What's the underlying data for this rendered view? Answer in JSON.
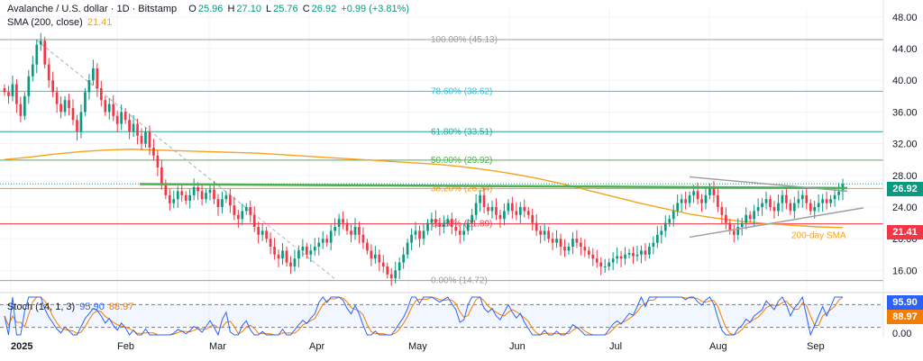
{
  "header": {
    "symbol": "Avalanche / U.S. dollar · 1D · Bitstamp",
    "open_label": "O",
    "open": "25.96",
    "high_label": "H",
    "high": "27.10",
    "low_label": "L",
    "low": "25.76",
    "close_label": "C",
    "close": "26.92",
    "change": "+0.99 (+3.81%)",
    "sma_label": "SMA (200, close)",
    "sma_value": "21.41"
  },
  "stoch_header": {
    "label": "Stoch (14, 1, 3)",
    "k": "95.90",
    "d": "88.97"
  },
  "badges": {
    "price": "26.92",
    "sma": "21.41",
    "k": "95.90",
    "d": "88.97"
  },
  "colors": {
    "up": "#089981",
    "down": "#f23645",
    "sma": "#f7a21b",
    "green_line": "#4caf50",
    "stoch_k": "#2962ff",
    "stoch_d": "#f57c00"
  },
  "chart_data": [
    {
      "type": "candlestick",
      "title": "Avalanche / U.S. dollar · 1D · Bitstamp",
      "x_ticks": [
        "2025",
        "Feb",
        "Mar",
        "Apr",
        "May",
        "Jun",
        "Jul",
        "Aug",
        "Sep"
      ],
      "y_ticks": [
        16,
        20,
        24,
        28,
        32,
        36,
        40,
        44,
        48
      ],
      "ylim": [
        14,
        49
      ],
      "fibonacci": [
        {
          "label": "100.00% (45.13)",
          "value": 45.13,
          "color": "#9e9e9e"
        },
        {
          "label": "78.60% (38.62)",
          "value": 38.62,
          "color": "#26c6da"
        },
        {
          "label": "61.80% (33.51)",
          "value": 33.51,
          "color": "#26a69a"
        },
        {
          "label": "50.00% (29.92)",
          "value": 29.92,
          "color": "#4caf50"
        },
        {
          "label": "38.20% (26.34)",
          "value": 26.34,
          "color": "#ff9800"
        },
        {
          "label": "23.60% (21.89)",
          "value": 21.89,
          "color": "#f23645"
        },
        {
          "label": "0.00% (14.72)",
          "value": 14.72,
          "color": "#9e9e9e"
        }
      ],
      "annotation": "200-day SMA",
      "close_series": [
        38.5,
        38.0,
        39.5,
        37.0,
        35.5,
        38.0,
        40.5,
        42.0,
        44.5,
        45.0,
        42.0,
        40.0,
        38.5,
        37.0,
        36.0,
        37.5,
        36.5,
        35.0,
        33.5,
        36.0,
        38.5,
        40.0,
        41.5,
        39.0,
        37.5,
        36.0,
        37.0,
        35.5,
        34.5,
        36.0,
        35.0,
        33.5,
        34.5,
        33.0,
        32.0,
        33.5,
        31.5,
        30.5,
        29.0,
        27.0,
        25.5,
        24.5,
        25.0,
        26.0,
        25.5,
        24.8,
        25.5,
        26.5,
        26.0,
        25.0,
        25.8,
        26.2,
        25.0,
        24.0,
        25.0,
        25.5,
        24.2,
        23.0,
        22.5,
        23.5,
        24.0,
        23.0,
        21.5,
        20.5,
        21.0,
        20.0,
        19.0,
        18.0,
        17.5,
        18.5,
        17.0,
        16.5,
        17.5,
        18.5,
        19.0,
        18.0,
        18.5,
        19.0,
        19.5,
        20.0,
        19.5,
        21.0,
        21.5,
        22.5,
        22.0,
        21.0,
        20.5,
        21.5,
        20.5,
        19.5,
        18.5,
        17.5,
        18.0,
        17.0,
        16.5,
        15.5,
        15.0,
        16.0,
        17.0,
        18.0,
        19.5,
        20.5,
        21.0,
        20.0,
        21.0,
        22.0,
        22.5,
        22.0,
        21.5,
        22.0,
        22.5,
        21.5,
        21.0,
        20.5,
        21.0,
        22.0,
        23.0,
        24.5,
        25.5,
        24.0,
        23.5,
        24.0,
        23.0,
        22.5,
        23.5,
        24.5,
        23.5,
        23.0,
        24.0,
        23.5,
        23.0,
        22.0,
        21.0,
        20.5,
        21.0,
        20.0,
        19.5,
        20.0,
        19.0,
        18.5,
        19.0,
        20.0,
        19.5,
        19.0,
        18.5,
        18.0,
        17.5,
        17.0,
        16.5,
        16.5,
        17.0,
        17.5,
        17.8,
        17.5,
        18.0,
        18.2,
        17.8,
        18.0,
        18.5,
        18.0,
        19.0,
        19.5,
        20.5,
        21.0,
        22.0,
        22.5,
        23.5,
        24.5,
        25.0,
        24.5,
        25.5,
        26.0,
        25.0,
        24.5,
        25.5,
        26.5,
        25.5,
        24.0,
        23.0,
        22.0,
        21.0,
        20.5,
        21.5,
        22.0,
        23.0,
        22.5,
        23.5,
        24.0,
        24.5,
        25.0,
        24.0,
        23.5,
        24.5,
        25.5,
        24.5,
        23.5,
        24.5,
        25.0,
        25.5,
        24.5,
        23.5,
        24.0,
        24.5,
        25.0,
        24.5,
        25.0,
        25.5,
        25.96,
        26.92
      ],
      "sma_series": [
        30.0,
        30.3,
        30.7,
        31.0,
        31.2,
        31.3,
        31.2,
        31.1,
        31.0,
        30.9,
        30.8,
        30.6,
        30.4,
        30.2,
        30.0,
        29.8,
        29.6,
        29.4,
        29.1,
        28.7,
        28.2,
        27.6,
        26.9,
        26.1,
        25.3,
        24.5,
        23.8,
        23.1,
        22.6,
        22.2,
        21.9,
        21.7,
        21.5,
        21.41
      ],
      "green_line": 26.9,
      "stochastic": {
        "label": "Stoch (14, 1, 3)",
        "k_last": 95.9,
        "d_last": 88.97,
        "y_ticks": [
          0.0
        ],
        "bands": [
          80,
          20
        ]
      }
    }
  ]
}
